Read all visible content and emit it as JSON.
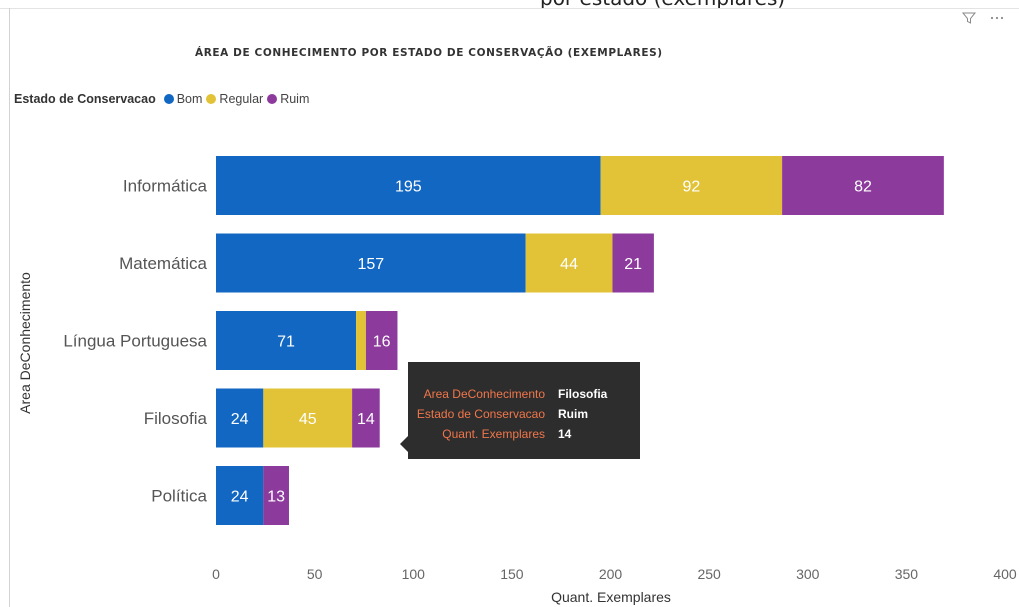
{
  "header": {
    "clipped_text": "por estado (exemplares)"
  },
  "icons": {
    "filter": "filter-icon",
    "more": "more-options-icon"
  },
  "colors": {
    "bom": "#1167c2",
    "regular": "#e2c337",
    "ruim": "#8c3a9c",
    "tooltip_bg": "#2d2d2d",
    "tooltip_label": "#f0764a"
  },
  "legend": {
    "title": "Estado de Conservacao",
    "items": [
      {
        "label": "Bom",
        "color": "#1167c2"
      },
      {
        "label": "Regular",
        "color": "#e2c337"
      },
      {
        "label": "Ruim",
        "color": "#8c3a9c"
      }
    ]
  },
  "tooltip": {
    "rows": [
      {
        "label": "Area DeConhecimento",
        "value": "Filosofia"
      },
      {
        "label": "Estado de Conservacao",
        "value": "Ruim"
      },
      {
        "label": "Quant. Exemplares",
        "value": "14"
      }
    ]
  },
  "chart_data": {
    "type": "bar",
    "orientation": "horizontal",
    "stacked": true,
    "title": "ÁREA DE CONHECIMENTO POR ESTADO DE CONSERVAÇÃO (EXEMPLARES)",
    "xlabel": "Quant. Exemplares",
    "ylabel": "Area DeConhecimento",
    "categories": [
      "Informática",
      "Matemática",
      "Língua Portuguesa",
      "Filosofia",
      "Política"
    ],
    "series": [
      {
        "name": "Bom",
        "values": [
          195,
          157,
          71,
          24,
          24
        ],
        "color": "#1167c2"
      },
      {
        "name": "Regular",
        "values": [
          92,
          44,
          5,
          45,
          0
        ],
        "color": "#e2c337"
      },
      {
        "name": "Ruim",
        "values": [
          82,
          21,
          16,
          14,
          13
        ],
        "color": "#8c3a9c"
      }
    ],
    "data_labels": [
      [
        "195",
        "92",
        "82"
      ],
      [
        "157",
        "44",
        "21"
      ],
      [
        "71",
        "",
        "16"
      ],
      [
        "24",
        "45",
        "14"
      ],
      [
        "24",
        "",
        "13"
      ]
    ],
    "xlim": [
      0,
      400
    ],
    "xticks": [
      0,
      50,
      100,
      150,
      200,
      250,
      300,
      350,
      400
    ],
    "xtick_labels": [
      "0",
      "50",
      "100",
      "150",
      "200",
      "250",
      "300",
      "350",
      "400"
    ],
    "grid": false,
    "legend_position": "top-left"
  }
}
